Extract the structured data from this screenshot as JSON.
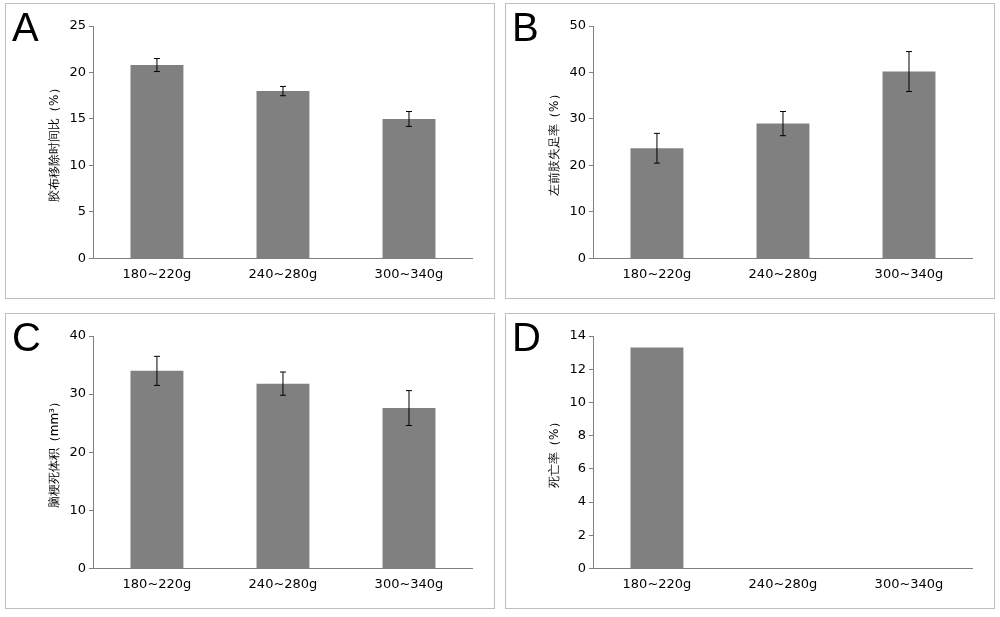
{
  "chart_data": [
    {
      "type": "bar",
      "title": "A",
      "y_label": "胶布移除时间比（%）",
      "categories": [
        "180~220g",
        "240~280g",
        "300~340g"
      ],
      "values": [
        20.8,
        18.0,
        15.0
      ],
      "errors": [
        0.7,
        0.5,
        0.8
      ],
      "color": "#808080",
      "ylim": [
        0,
        25
      ],
      "yticks": [
        0,
        5,
        10,
        15,
        20,
        25
      ],
      "grid": false
    },
    {
      "type": "bar",
      "title": "B",
      "y_label": "左前肢失足率（%）",
      "categories": [
        "180~220g",
        "240~280g",
        "300~340g"
      ],
      "values": [
        23.7,
        29.0,
        40.2
      ],
      "errors": [
        3.2,
        2.6,
        4.3
      ],
      "color": "#808080",
      "ylim": [
        0,
        50
      ],
      "yticks": [
        0,
        10,
        20,
        30,
        40,
        50
      ],
      "grid": false
    },
    {
      "type": "bar",
      "title": "C",
      "y_label": "脑梗死体积（mm³）",
      "categories": [
        "180~220g",
        "240~280g",
        "300~340g"
      ],
      "values": [
        34.0,
        31.8,
        27.6
      ],
      "errors": [
        2.5,
        2.0,
        3.0
      ],
      "color": "#808080",
      "ylim": [
        0,
        40
      ],
      "yticks": [
        0,
        10,
        20,
        30,
        40
      ],
      "grid": false
    },
    {
      "type": "bar",
      "title": "D",
      "y_label": "死亡率（%）",
      "categories": [
        "180~220g",
        "240~280g",
        "300~340g"
      ],
      "values": [
        13.3,
        0,
        0
      ],
      "color": "#808080",
      "ylim": [
        0,
        14
      ],
      "yticks": [
        0,
        2,
        4,
        6,
        8,
        10,
        12,
        14
      ],
      "grid": false
    }
  ]
}
